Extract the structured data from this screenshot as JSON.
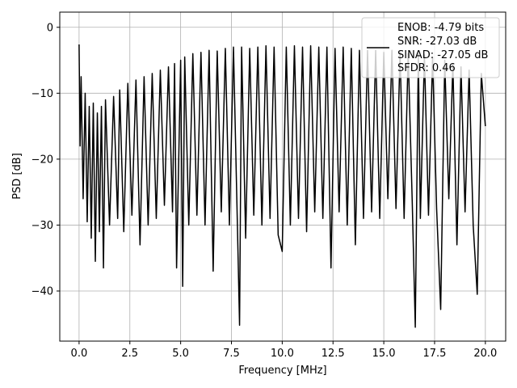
{
  "chart_data": {
    "type": "line",
    "title": "",
    "xlabel": "Frequency [MHz]",
    "ylabel": "PSD [dB]",
    "xlim": [
      -0.95,
      21.0
    ],
    "ylim": [
      -47.6,
      2.3
    ],
    "xticks": [
      0.0,
      2.5,
      5.0,
      7.5,
      10.0,
      12.5,
      15.0,
      17.5,
      20.0
    ],
    "xtick_labels": [
      "0.0",
      "2.5",
      "5.0",
      "7.5",
      "10.0",
      "12.5",
      "15.0",
      "17.5",
      "20.0"
    ],
    "yticks": [
      0,
      -10,
      -20,
      -30,
      -40
    ],
    "ytick_labels": [
      "0",
      "−10",
      "−20",
      "−30",
      "−40"
    ],
    "grid": true,
    "legend": {
      "placement": "top-right",
      "entries": [
        "ENOB: -4.79 bits",
        "SNR: -27.03 dB",
        "SINAD: -27.05 dB",
        "SFDR: 0.46"
      ]
    },
    "series": [
      {
        "color": "#000000",
        "x": [
          0.0,
          0.05,
          0.1,
          0.2,
          0.3,
          0.4,
          0.5,
          0.6,
          0.7,
          0.8,
          0.9,
          1.0,
          1.1,
          1.2,
          1.3,
          1.5,
          1.7,
          1.9,
          2.0,
          2.2,
          2.4,
          2.6,
          2.8,
          3.0,
          3.2,
          3.4,
          3.6,
          3.8,
          4.0,
          4.2,
          4.4,
          4.6,
          4.7,
          4.8,
          5.0,
          5.1,
          5.2,
          5.4,
          5.6,
          5.8,
          6.0,
          6.2,
          6.4,
          6.6,
          6.8,
          7.0,
          7.2,
          7.4,
          7.6,
          7.8,
          7.9,
          8.0,
          8.2,
          8.4,
          8.6,
          8.8,
          9.0,
          9.2,
          9.4,
          9.6,
          9.8,
          10.0,
          10.2,
          10.4,
          10.6,
          10.8,
          11.0,
          11.2,
          11.4,
          11.6,
          11.8,
          12.0,
          12.2,
          12.4,
          12.6,
          12.8,
          13.0,
          13.2,
          13.4,
          13.6,
          13.8,
          14.0,
          14.2,
          14.4,
          14.6,
          14.8,
          15.0,
          15.2,
          15.4,
          15.6,
          15.8,
          16.0,
          16.2,
          16.4,
          16.55,
          16.7,
          16.8,
          17.0,
          17.2,
          17.4,
          17.6,
          17.8,
          18.0,
          18.2,
          18.4,
          18.6,
          18.8,
          19.0,
          19.2,
          19.4,
          19.6,
          19.8,
          20.0
        ],
        "values": [
          -2.6,
          -18.0,
          -7.5,
          -26.0,
          -10.0,
          -29.5,
          -12.0,
          -32.0,
          -11.5,
          -35.5,
          -13.0,
          -31.0,
          -12.0,
          -36.5,
          -11.0,
          -30.0,
          -10.5,
          -29.0,
          -9.5,
          -31.0,
          -8.5,
          -28.5,
          -8.0,
          -33.0,
          -7.5,
          -30.0,
          -7.0,
          -29.0,
          -6.5,
          -27.0,
          -6.0,
          -28.0,
          -5.5,
          -36.5,
          -5.0,
          -39.3,
          -4.5,
          -30.0,
          -4.0,
          -28.5,
          -3.8,
          -30.0,
          -3.5,
          -37.0,
          -3.6,
          -28.0,
          -3.2,
          -30.0,
          -3.0,
          -31.0,
          -45.2,
          -3.0,
          -32.0,
          -3.2,
          -28.5,
          -3.0,
          -30.0,
          -2.8,
          -29.0,
          -3.0,
          -31.5,
          -34.0,
          -3.0,
          -30.0,
          -2.8,
          -29.0,
          -3.0,
          -31.0,
          -2.8,
          -28.0,
          -3.0,
          -29.0,
          -3.0,
          -36.5,
          -3.2,
          -28.0,
          -3.0,
          -30.0,
          -3.2,
          -33.0,
          -3.5,
          -29.0,
          -3.5,
          -28.0,
          -3.5,
          -29.0,
          -3.8,
          -26.0,
          -3.5,
          -27.5,
          -3.8,
          -29.0,
          -4.0,
          -26.5,
          -45.5,
          -4.0,
          -29.0,
          -4.2,
          -28.5,
          -4.5,
          -27.5,
          -42.8,
          -5.0,
          -26.0,
          -5.5,
          -33.0,
          -6.0,
          -28.0,
          -6.5,
          -30.0,
          -40.5,
          -7.0,
          -15.0
        ]
      }
    ]
  }
}
